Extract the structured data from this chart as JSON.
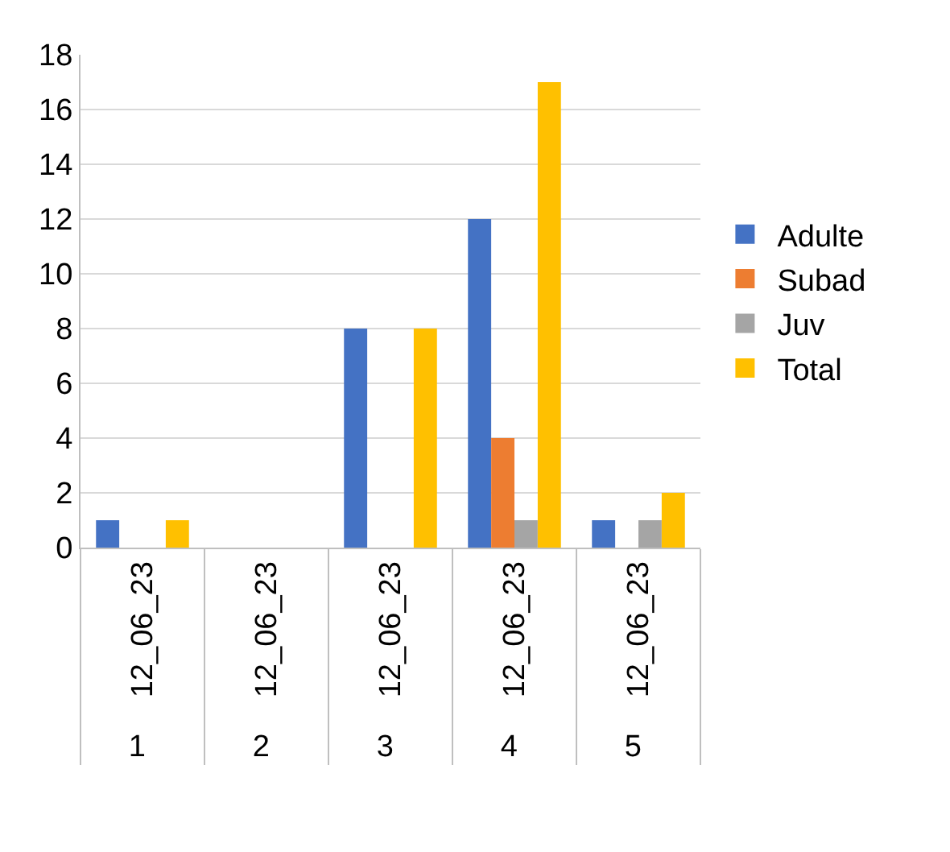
{
  "chart_data": {
    "type": "bar",
    "categories": [
      "1",
      "2",
      "3",
      "4",
      "5"
    ],
    "series": [
      {
        "name": "Adulte",
        "color": "#4472c4",
        "values": [
          1,
          0,
          8,
          12,
          1
        ]
      },
      {
        "name": "Subad",
        "color": "#ed7d31",
        "values": [
          0,
          0,
          0,
          4,
          0
        ]
      },
      {
        "name": "Juv",
        "color": "#a5a5a5",
        "values": [
          0,
          0,
          0,
          1,
          1
        ]
      },
      {
        "name": "Total",
        "color": "#ffc000",
        "values": [
          1,
          0,
          8,
          17,
          2
        ]
      }
    ],
    "annotations": [
      "12_06_23",
      "12_06_23",
      "12_06_23",
      "12_06_23",
      "12_06_23"
    ],
    "ylim": [
      0,
      18
    ],
    "yticks": [
      0,
      2,
      4,
      6,
      8,
      10,
      12,
      14,
      16,
      18
    ],
    "grid": "y",
    "legend": "right"
  }
}
